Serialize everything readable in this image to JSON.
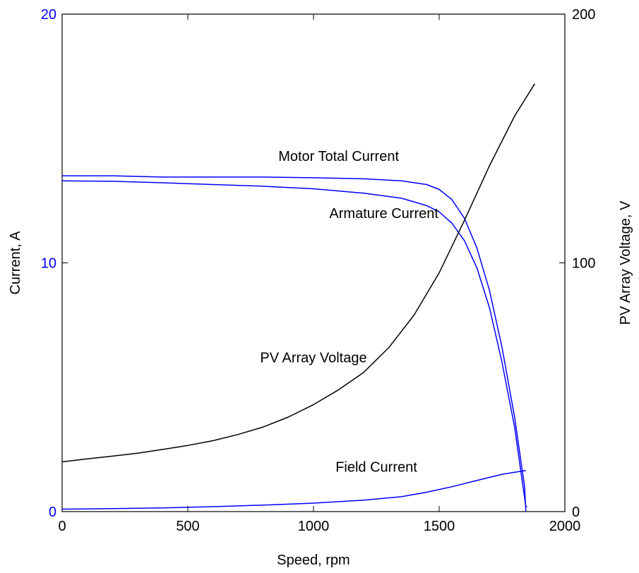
{
  "chart_data": {
    "type": "line",
    "xlabel": "Speed, rpm",
    "ylabel_left": "Current, A",
    "ylabel_right": "PV Array Voltage, V",
    "xlim": [
      0,
      2000
    ],
    "ylim_left": [
      0,
      20
    ],
    "ylim_right": [
      0,
      200
    ],
    "x_ticks": [
      0,
      500,
      1000,
      1500,
      2000
    ],
    "y_left_ticks": [
      0,
      10,
      20
    ],
    "y_right_ticks": [
      0,
      100,
      200
    ],
    "grid": false,
    "colors": {
      "current": "#0000ff",
      "voltage": "#000000",
      "left_tick_labels": "#0000ff",
      "right_tick_labels": "#000000"
    },
    "series": [
      {
        "name": "Motor Total Current",
        "axis": "left",
        "color": "#0000ff",
        "x": [
          0,
          200,
          400,
          600,
          800,
          1000,
          1200,
          1350,
          1450,
          1500,
          1550,
          1600,
          1650,
          1700,
          1750,
          1800,
          1840,
          1845
        ],
        "y": [
          13.5,
          13.5,
          13.45,
          13.45,
          13.45,
          13.42,
          13.38,
          13.3,
          13.15,
          12.95,
          12.55,
          11.8,
          10.6,
          8.9,
          6.6,
          3.8,
          1.0,
          0.0
        ]
      },
      {
        "name": "Armature Current",
        "axis": "left",
        "color": "#0000ff",
        "x": [
          0,
          200,
          400,
          600,
          800,
          1000,
          1200,
          1350,
          1450,
          1500,
          1550,
          1600,
          1650,
          1700,
          1750,
          1800,
          1845,
          1850
        ],
        "y": [
          13.3,
          13.28,
          13.22,
          13.15,
          13.08,
          12.98,
          12.8,
          12.6,
          12.3,
          12.05,
          11.6,
          10.9,
          9.8,
          8.2,
          6.0,
          3.4,
          0.2,
          0.2
        ]
      },
      {
        "name": "Field Current",
        "axis": "left",
        "color": "#0000ff",
        "x": [
          0,
          200,
          400,
          600,
          800,
          1000,
          1200,
          1350,
          1450,
          1550,
          1650,
          1750,
          1845
        ],
        "y": [
          0.1,
          0.12,
          0.15,
          0.2,
          0.26,
          0.34,
          0.46,
          0.6,
          0.78,
          1.0,
          1.25,
          1.5,
          1.65
        ]
      },
      {
        "name": "PV Array Voltage",
        "axis": "right",
        "color": "#000000",
        "x": [
          0,
          100,
          200,
          300,
          400,
          500,
          600,
          700,
          800,
          900,
          1000,
          1100,
          1200,
          1300,
          1400,
          1500,
          1600,
          1700,
          1800,
          1880
        ],
        "y": [
          20,
          21.2,
          22.3,
          23.5,
          25,
          26.6,
          28.5,
          31,
          34,
          38,
          43,
          49,
          56,
          66,
          79,
          96,
          117,
          139,
          159,
          172
        ]
      }
    ],
    "annotations": [
      {
        "text": "Motor Total Current",
        "x": 1100,
        "y": 14.1,
        "axis": "left"
      },
      {
        "text": "Armature Current",
        "x": 1280,
        "y": 11.8,
        "axis": "left"
      },
      {
        "text": "PV Array Voltage",
        "x": 1000,
        "y": 6.0,
        "axis": "left"
      },
      {
        "text": "Field Current",
        "x": 1250,
        "y": 1.6,
        "axis": "left"
      }
    ]
  }
}
